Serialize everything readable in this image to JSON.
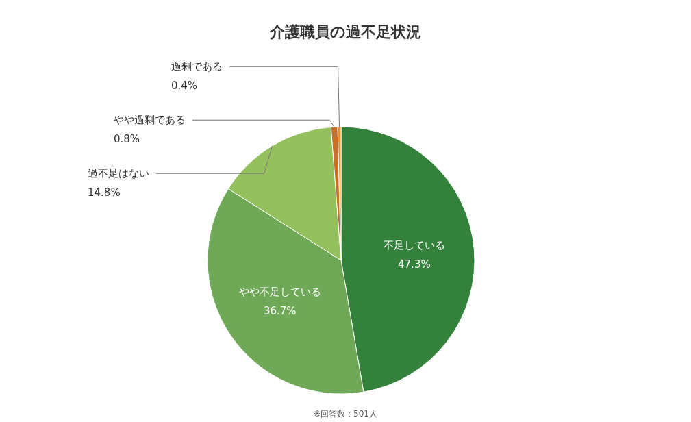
{
  "chart_data": {
    "type": "pie",
    "title": "介護職員の過不足状況",
    "categories": [
      "不足している",
      "やや不足している",
      "過不足はない",
      "やや過剰である",
      "過剰である"
    ],
    "values": [
      47.3,
      36.7,
      14.8,
      0.8,
      0.4
    ],
    "colors": [
      "#33813b",
      "#6fa957",
      "#94c15e",
      "#c8702a",
      "#e6902f"
    ],
    "value_labels": [
      "47.3%",
      "36.7%",
      "14.8%",
      "0.8%",
      "0.4%"
    ],
    "annotations": [
      "※回答数：501人"
    ]
  }
}
